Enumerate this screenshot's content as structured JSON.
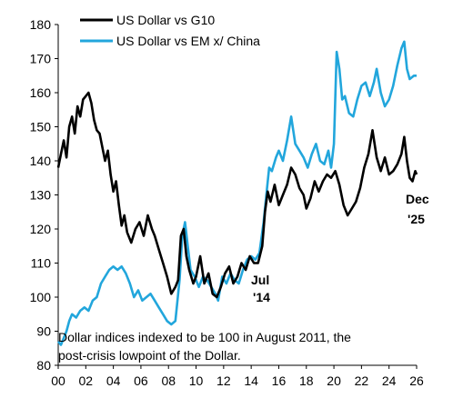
{
  "chart_data": {
    "type": "line",
    "title": "",
    "xlabel": "",
    "ylabel": "",
    "xlim": [
      2000,
      2026
    ],
    "ylim": [
      80,
      180
    ],
    "y_ticks": [
      80,
      90,
      100,
      110,
      120,
      130,
      140,
      150,
      160,
      170,
      180
    ],
    "x_ticks": [
      2000,
      2002,
      2004,
      2006,
      2008,
      2010,
      2012,
      2014,
      2016,
      2018,
      2020,
      2022,
      2024,
      2026
    ],
    "x_tick_labels": [
      "00",
      "02",
      "04",
      "06",
      "08",
      "10",
      "12",
      "14",
      "16",
      "18",
      "20",
      "22",
      "24",
      "26"
    ],
    "grid": false,
    "legend_position": "top-left",
    "series": [
      {
        "name": "US Dollar vs G10",
        "color": "#000000",
        "points": [
          [
            2000.0,
            138
          ],
          [
            2000.2,
            142
          ],
          [
            2000.4,
            146
          ],
          [
            2000.6,
            141
          ],
          [
            2000.8,
            150
          ],
          [
            2001.0,
            153
          ],
          [
            2001.2,
            148
          ],
          [
            2001.4,
            156
          ],
          [
            2001.6,
            153
          ],
          [
            2001.8,
            158
          ],
          [
            2002.0,
            159
          ],
          [
            2002.2,
            160
          ],
          [
            2002.4,
            157
          ],
          [
            2002.6,
            152
          ],
          [
            2002.8,
            149
          ],
          [
            2003.0,
            148
          ],
          [
            2003.2,
            144
          ],
          [
            2003.4,
            140
          ],
          [
            2003.6,
            143
          ],
          [
            2003.8,
            136
          ],
          [
            2004.0,
            131
          ],
          [
            2004.2,
            134
          ],
          [
            2004.4,
            127
          ],
          [
            2004.6,
            121
          ],
          [
            2004.8,
            124
          ],
          [
            2005.0,
            119
          ],
          [
            2005.3,
            116
          ],
          [
            2005.6,
            120
          ],
          [
            2005.9,
            122
          ],
          [
            2006.2,
            118
          ],
          [
            2006.5,
            124
          ],
          [
            2006.8,
            120
          ],
          [
            2007.0,
            118
          ],
          [
            2007.3,
            114
          ],
          [
            2007.6,
            110
          ],
          [
            2007.9,
            106
          ],
          [
            2008.2,
            101
          ],
          [
            2008.5,
            103
          ],
          [
            2008.7,
            105
          ],
          [
            2008.9,
            118
          ],
          [
            2009.1,
            120
          ],
          [
            2009.3,
            112
          ],
          [
            2009.5,
            108
          ],
          [
            2009.8,
            104
          ],
          [
            2010.0,
            106
          ],
          [
            2010.3,
            112
          ],
          [
            2010.6,
            104
          ],
          [
            2010.9,
            107
          ],
          [
            2011.2,
            101
          ],
          [
            2011.5,
            100
          ],
          [
            2011.8,
            103
          ],
          [
            2012.1,
            107
          ],
          [
            2012.4,
            109
          ],
          [
            2012.7,
            104
          ],
          [
            2013.0,
            106
          ],
          [
            2013.3,
            110
          ],
          [
            2013.6,
            108
          ],
          [
            2013.9,
            112
          ],
          [
            2014.2,
            110
          ],
          [
            2014.5,
            110
          ],
          [
            2014.8,
            115
          ],
          [
            2015.0,
            125
          ],
          [
            2015.2,
            131
          ],
          [
            2015.4,
            128
          ],
          [
            2015.7,
            133
          ],
          [
            2016.0,
            127
          ],
          [
            2016.3,
            130
          ],
          [
            2016.6,
            133
          ],
          [
            2016.9,
            138
          ],
          [
            2017.2,
            136
          ],
          [
            2017.5,
            132
          ],
          [
            2017.8,
            130
          ],
          [
            2018.0,
            126
          ],
          [
            2018.3,
            129
          ],
          [
            2018.6,
            134
          ],
          [
            2018.9,
            131
          ],
          [
            2019.2,
            134
          ],
          [
            2019.5,
            136
          ],
          [
            2019.8,
            135
          ],
          [
            2020.1,
            137
          ],
          [
            2020.4,
            133
          ],
          [
            2020.7,
            127
          ],
          [
            2021.0,
            124
          ],
          [
            2021.3,
            126
          ],
          [
            2021.6,
            128
          ],
          [
            2021.9,
            132
          ],
          [
            2022.2,
            138
          ],
          [
            2022.5,
            142
          ],
          [
            2022.8,
            149
          ],
          [
            2023.1,
            141
          ],
          [
            2023.4,
            137
          ],
          [
            2023.7,
            141
          ],
          [
            2024.0,
            136
          ],
          [
            2024.3,
            137
          ],
          [
            2024.6,
            139
          ],
          [
            2024.9,
            142
          ],
          [
            2025.1,
            147
          ],
          [
            2025.3,
            140
          ],
          [
            2025.5,
            135
          ],
          [
            2025.7,
            134
          ],
          [
            2025.9,
            137
          ],
          [
            2026.0,
            136
          ]
        ]
      },
      {
        "name": "US Dollar vs EM x/ China",
        "color": "#22a6dc",
        "points": [
          [
            2000.0,
            87
          ],
          [
            2000.2,
            86
          ],
          [
            2000.4,
            88
          ],
          [
            2000.6,
            90
          ],
          [
            2000.8,
            93
          ],
          [
            2001.0,
            95
          ],
          [
            2001.3,
            94
          ],
          [
            2001.6,
            96
          ],
          [
            2001.9,
            97
          ],
          [
            2002.2,
            96
          ],
          [
            2002.5,
            99
          ],
          [
            2002.8,
            100
          ],
          [
            2003.1,
            104
          ],
          [
            2003.4,
            106
          ],
          [
            2003.7,
            108
          ],
          [
            2004.0,
            109
          ],
          [
            2004.3,
            108
          ],
          [
            2004.6,
            109
          ],
          [
            2004.9,
            107
          ],
          [
            2005.2,
            104
          ],
          [
            2005.5,
            100
          ],
          [
            2005.8,
            102
          ],
          [
            2006.1,
            99
          ],
          [
            2006.4,
            100
          ],
          [
            2006.7,
            101
          ],
          [
            2007.0,
            99
          ],
          [
            2007.3,
            97
          ],
          [
            2007.6,
            95
          ],
          [
            2007.9,
            93
          ],
          [
            2008.2,
            92
          ],
          [
            2008.5,
            93
          ],
          [
            2008.8,
            105
          ],
          [
            2009.0,
            118
          ],
          [
            2009.2,
            122
          ],
          [
            2009.4,
            115
          ],
          [
            2009.6,
            108
          ],
          [
            2009.9,
            106
          ],
          [
            2010.2,
            103
          ],
          [
            2010.5,
            106
          ],
          [
            2010.8,
            105
          ],
          [
            2011.1,
            103
          ],
          [
            2011.4,
            101
          ],
          [
            2011.6,
            99
          ],
          [
            2011.9,
            106
          ],
          [
            2012.2,
            104
          ],
          [
            2012.5,
            107
          ],
          [
            2012.8,
            105
          ],
          [
            2013.1,
            104
          ],
          [
            2013.4,
            108
          ],
          [
            2013.7,
            111
          ],
          [
            2014.0,
            112
          ],
          [
            2014.3,
            111
          ],
          [
            2014.6,
            113
          ],
          [
            2014.9,
            122
          ],
          [
            2015.1,
            130
          ],
          [
            2015.3,
            138
          ],
          [
            2015.5,
            137
          ],
          [
            2015.8,
            141
          ],
          [
            2016.0,
            143
          ],
          [
            2016.3,
            140
          ],
          [
            2016.6,
            146
          ],
          [
            2016.9,
            153
          ],
          [
            2017.2,
            145
          ],
          [
            2017.5,
            143
          ],
          [
            2017.8,
            141
          ],
          [
            2018.1,
            138
          ],
          [
            2018.4,
            142
          ],
          [
            2018.7,
            145
          ],
          [
            2019.0,
            140
          ],
          [
            2019.3,
            139
          ],
          [
            2019.6,
            143
          ],
          [
            2019.8,
            138
          ],
          [
            2020.0,
            145
          ],
          [
            2020.2,
            172
          ],
          [
            2020.4,
            167
          ],
          [
            2020.6,
            158
          ],
          [
            2020.8,
            159
          ],
          [
            2021.1,
            154
          ],
          [
            2021.4,
            153
          ],
          [
            2021.7,
            158
          ],
          [
            2022.0,
            162
          ],
          [
            2022.3,
            163
          ],
          [
            2022.6,
            159
          ],
          [
            2022.9,
            163
          ],
          [
            2023.1,
            167
          ],
          [
            2023.4,
            160
          ],
          [
            2023.7,
            156
          ],
          [
            2024.0,
            158
          ],
          [
            2024.3,
            162
          ],
          [
            2024.6,
            168
          ],
          [
            2024.9,
            173
          ],
          [
            2025.1,
            175
          ],
          [
            2025.3,
            167
          ],
          [
            2025.5,
            164
          ],
          [
            2025.8,
            165
          ],
          [
            2026.0,
            165
          ]
        ]
      }
    ],
    "annotations": {
      "jul14_line1": "Jul",
      "jul14_line2": "'14",
      "dec25_line1": "Dec",
      "dec25_line2": "'25",
      "note_line1": "Dollar indices indexed to be 100 in August 2011, the",
      "note_line2": "post-crisis lowpoint of the Dollar."
    }
  }
}
